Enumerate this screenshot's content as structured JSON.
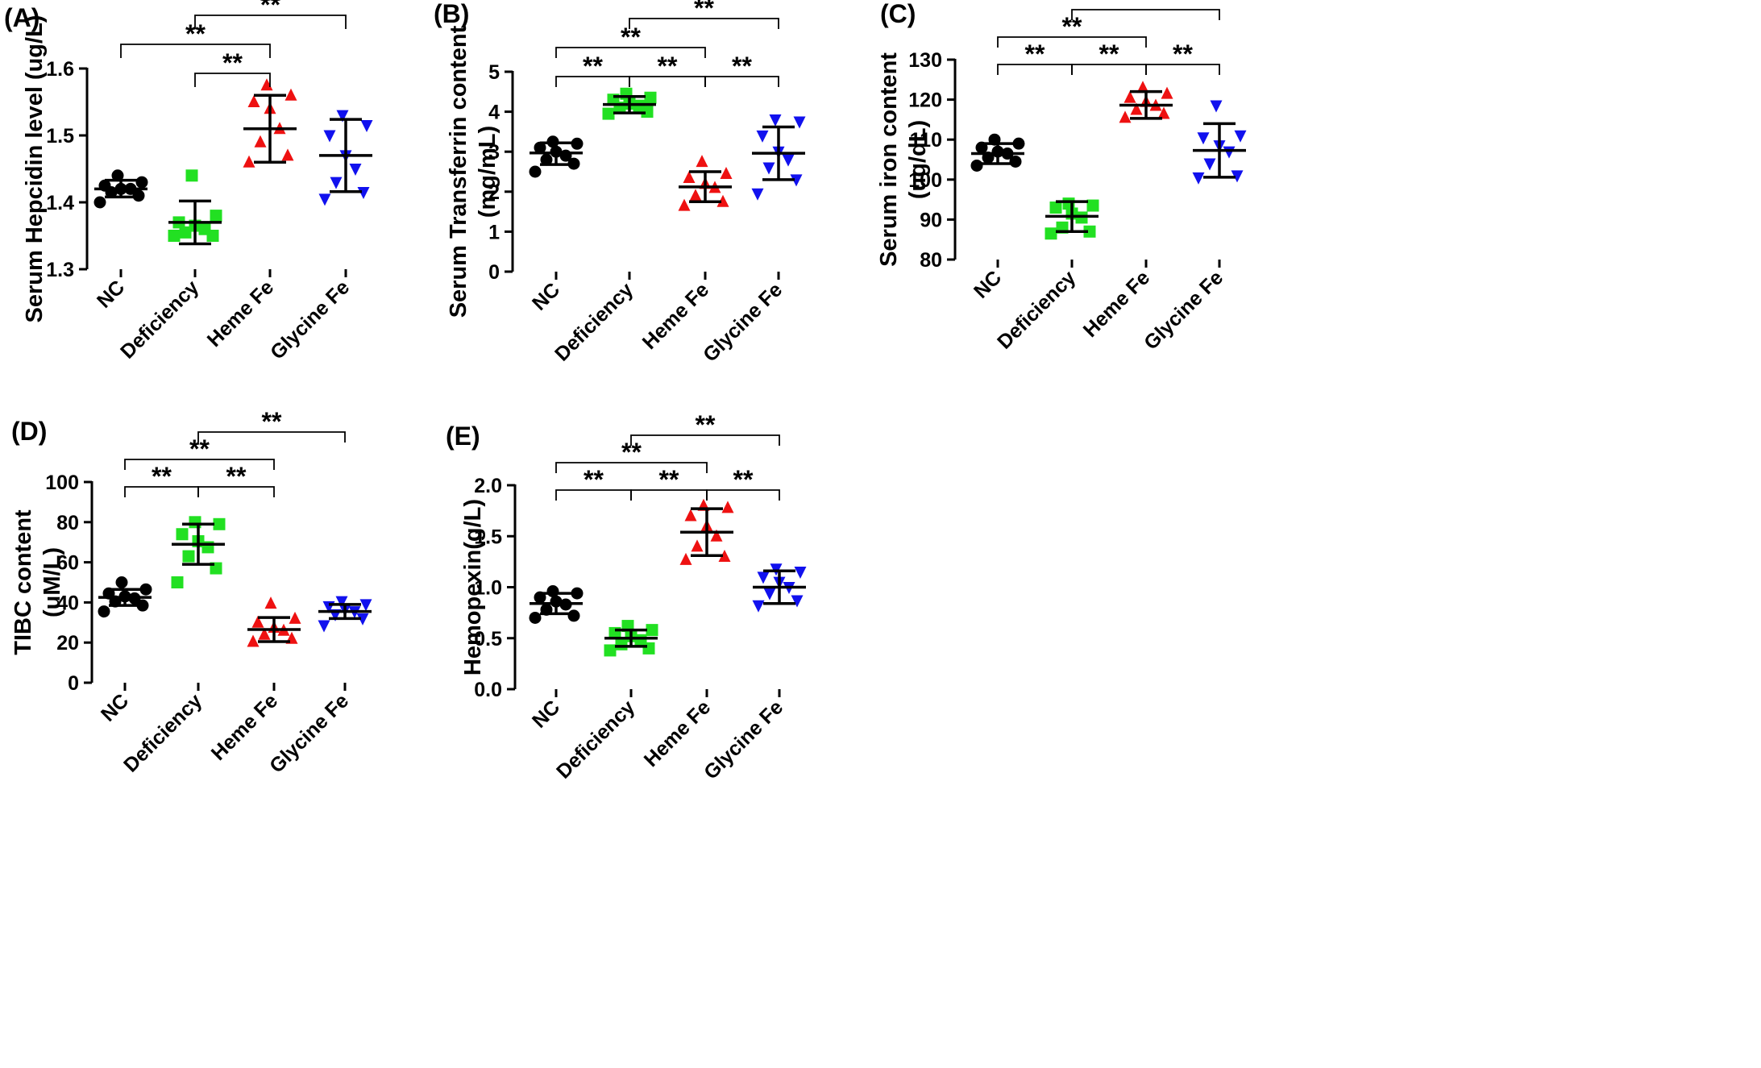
{
  "figure": {
    "colors": {
      "NC": "#000000",
      "Deficiency": "#22e022",
      "Heme Fe": "#ee1111",
      "Glycine Fe": "#1111ee"
    },
    "markers": {
      "NC": "circle",
      "Deficiency": "square",
      "Heme Fe": "triangle-up",
      "Glycine Fe": "triangle-down"
    }
  },
  "chart_data": [
    {
      "panel": "(A)",
      "type": "scatter",
      "ylabel": "Serum Hepcidin level (ug/L)",
      "ylabel_lines": [
        "Serum Hepcidin level (ug/L)"
      ],
      "categories": [
        "NC",
        "Deficiency",
        "Heme Fe",
        "Glycine Fe"
      ],
      "ylim": [
        1.3,
        1.6
      ],
      "yticks": [
        1.3,
        1.4,
        1.5,
        1.6
      ],
      "ytick_labels": [
        "1.3",
        "1.4",
        "1.5",
        "1.6"
      ],
      "series": [
        {
          "name": "NC",
          "mean": 1.42,
          "lower": 1.408,
          "upper": 1.433,
          "points": [
            1.4,
            1.41,
            1.415,
            1.42,
            1.42,
            1.425,
            1.43,
            1.44
          ]
        },
        {
          "name": "Deficiency",
          "mean": 1.37,
          "lower": 1.338,
          "upper": 1.402,
          "points": [
            1.35,
            1.35,
            1.355,
            1.36,
            1.365,
            1.37,
            1.38,
            1.44
          ]
        },
        {
          "name": "Heme Fe",
          "mean": 1.51,
          "lower": 1.46,
          "upper": 1.56,
          "points": [
            1.46,
            1.47,
            1.49,
            1.51,
            1.54,
            1.55,
            1.56,
            1.575
          ]
        },
        {
          "name": "Glycine Fe",
          "mean": 1.47,
          "lower": 1.416,
          "upper": 1.524,
          "points": [
            1.405,
            1.415,
            1.43,
            1.45,
            1.47,
            1.5,
            1.515,
            1.53
          ]
        }
      ],
      "comparisons": [
        {
          "groups": [
            "Deficiency",
            "Heme Fe"
          ],
          "label": "**",
          "level": 1
        },
        {
          "groups": [
            "NC",
            "Heme Fe"
          ],
          "label": "**",
          "level": 2
        },
        {
          "groups": [
            "Deficiency",
            "Glycine Fe"
          ],
          "label": "**",
          "level": 3
        }
      ]
    },
    {
      "panel": "(B)",
      "type": "scatter",
      "ylabel": "Serum Transferrin content (mg/mL)",
      "ylabel_lines": [
        "Serum Transferrin content",
        "(mg/mL)"
      ],
      "categories": [
        "NC",
        "Deficiency",
        "Heme Fe",
        "Glycine Fe"
      ],
      "ylim": [
        0,
        5
      ],
      "yticks": [
        0,
        1,
        2,
        3,
        4,
        5
      ],
      "ytick_labels": [
        "0",
        "1",
        "2",
        "3",
        "4",
        "5"
      ],
      "series": [
        {
          "name": "NC",
          "mean": 2.97,
          "lower": 2.68,
          "upper": 3.22,
          "points": [
            2.5,
            2.7,
            2.8,
            2.9,
            3.0,
            3.1,
            3.2,
            3.25
          ]
        },
        {
          "name": "Deficiency",
          "mean": 4.18,
          "lower": 3.97,
          "upper": 4.38,
          "points": [
            3.95,
            4.0,
            4.1,
            4.15,
            4.2,
            4.3,
            4.35,
            4.45
          ]
        },
        {
          "name": "Heme Fe",
          "mean": 2.12,
          "lower": 1.75,
          "upper": 2.5,
          "points": [
            1.65,
            1.75,
            1.9,
            2.1,
            2.2,
            2.35,
            2.45,
            2.75
          ]
        },
        {
          "name": "Glycine Fe",
          "mean": 2.96,
          "lower": 2.3,
          "upper": 3.62,
          "points": [
            1.95,
            2.3,
            2.6,
            2.8,
            3.0,
            3.4,
            3.75,
            3.8
          ]
        }
      ],
      "comparisons": [
        {
          "groups": [
            "NC",
            "Deficiency"
          ],
          "label": "**",
          "level": 1
        },
        {
          "groups": [
            "Deficiency",
            "Heme Fe"
          ],
          "label": "**",
          "level": 1
        },
        {
          "groups": [
            "Heme Fe",
            "Glycine Fe"
          ],
          "label": "**",
          "level": 1
        },
        {
          "groups": [
            "NC",
            "Heme Fe"
          ],
          "label": "**",
          "level": 2
        },
        {
          "groups": [
            "Deficiency",
            "Glycine Fe"
          ],
          "label": "**",
          "level": 3
        }
      ]
    },
    {
      "panel": "(C)",
      "type": "scatter",
      "ylabel": "Serum iron content (ug/dL)",
      "ylabel_lines": [
        "Serum iron content",
        "(ug/dL)"
      ],
      "categories": [
        "NC",
        "Deficiency",
        "Heme Fe",
        "Glycine Fe"
      ],
      "ylim": [
        80,
        130
      ],
      "yticks": [
        80,
        90,
        100,
        110,
        120,
        130
      ],
      "ytick_labels": [
        "80",
        "90",
        "100",
        "110",
        "120",
        "130"
      ],
      "series": [
        {
          "name": "NC",
          "mean": 106.5,
          "lower": 104.0,
          "upper": 109.0,
          "points": [
            103.5,
            104.5,
            105.5,
            106.5,
            107.0,
            108.0,
            109.0,
            110.0
          ]
        },
        {
          "name": "Deficiency",
          "mean": 90.8,
          "lower": 87.0,
          "upper": 94.5,
          "points": [
            86.5,
            87.0,
            88.0,
            90.5,
            91.5,
            93.0,
            93.5,
            94.0
          ]
        },
        {
          "name": "Heme Fe",
          "mean": 118.6,
          "lower": 115.3,
          "upper": 122.0,
          "points": [
            115.5,
            116.5,
            117.5,
            118.5,
            119.5,
            120.5,
            121.5,
            123.0
          ]
        },
        {
          "name": "Glycine Fe",
          "mean": 107.3,
          "lower": 100.6,
          "upper": 114.0,
          "points": [
            100.5,
            101.0,
            104.0,
            107.0,
            108.5,
            110.5,
            111.0,
            118.5
          ]
        }
      ],
      "comparisons": [
        {
          "groups": [
            "NC",
            "Deficiency"
          ],
          "label": "**",
          "level": 1
        },
        {
          "groups": [
            "Deficiency",
            "Heme Fe"
          ],
          "label": "**",
          "level": 1
        },
        {
          "groups": [
            "Heme Fe",
            "Glycine Fe"
          ],
          "label": "**",
          "level": 1
        },
        {
          "groups": [
            "NC",
            "Heme Fe"
          ],
          "label": "**",
          "level": 2
        },
        {
          "groups": [
            "Deficiency",
            "Glycine Fe"
          ],
          "label": "**",
          "level": 3
        }
      ]
    },
    {
      "panel": "(D)",
      "type": "scatter",
      "ylabel": "TIBC content (uM/L)",
      "ylabel_lines": [
        "TIBC content",
        "(uM/L)"
      ],
      "categories": [
        "NC",
        "Deficiency",
        "Heme Fe",
        "Glycine Fe"
      ],
      "ylim": [
        0,
        100
      ],
      "yticks": [
        0,
        20,
        40,
        60,
        80,
        100
      ],
      "ytick_labels": [
        "0",
        "20",
        "40",
        "60",
        "80",
        "100"
      ],
      "series": [
        {
          "name": "NC",
          "mean": 42.5,
          "lower": 38.5,
          "upper": 46.5,
          "points": [
            35.5,
            38.5,
            40.5,
            42.0,
            43.0,
            44.5,
            46.5,
            50.0
          ]
        },
        {
          "name": "Deficiency",
          "mean": 69.0,
          "lower": 59.0,
          "upper": 79.0,
          "points": [
            50.0,
            57.0,
            63.0,
            67.5,
            70.5,
            74.0,
            79.0,
            80.0
          ]
        },
        {
          "name": "Heme Fe",
          "mean": 26.5,
          "lower": 20.5,
          "upper": 32.5,
          "points": [
            20.5,
            22.0,
            24.0,
            26.0,
            27.5,
            30.0,
            32.0,
            39.5
          ]
        },
        {
          "name": "Glycine Fe",
          "mean": 35.5,
          "lower": 32.0,
          "upper": 39.0,
          "points": [
            28.5,
            32.0,
            34.0,
            35.5,
            36.5,
            38.0,
            39.0,
            40.5
          ]
        }
      ],
      "comparisons": [
        {
          "groups": [
            "NC",
            "Deficiency"
          ],
          "label": "**",
          "level": 1
        },
        {
          "groups": [
            "Deficiency",
            "Heme Fe"
          ],
          "label": "**",
          "level": 1
        },
        {
          "groups": [
            "NC",
            "Heme Fe"
          ],
          "label": "**",
          "level": 2
        },
        {
          "groups": [
            "Deficiency",
            "Glycine Fe"
          ],
          "label": "**",
          "level": 3
        }
      ]
    },
    {
      "panel": "(E)",
      "type": "scatter",
      "ylabel": "Hemopexin(g/L)",
      "ylabel_lines": [
        "Hemopexin(g/L)"
      ],
      "categories": [
        "NC",
        "Deficiency",
        "Heme Fe",
        "Glycine Fe"
      ],
      "ylim": [
        0.0,
        2.0
      ],
      "yticks": [
        0.0,
        0.5,
        1.0,
        1.5,
        2.0
      ],
      "ytick_labels": [
        "0.0",
        "0.5",
        "1.0",
        "1.5",
        "2.0"
      ],
      "series": [
        {
          "name": "NC",
          "mean": 0.84,
          "lower": 0.74,
          "upper": 0.94,
          "points": [
            0.7,
            0.72,
            0.78,
            0.83,
            0.86,
            0.9,
            0.94,
            0.96
          ]
        },
        {
          "name": "Deficiency",
          "mean": 0.5,
          "lower": 0.42,
          "upper": 0.58,
          "points": [
            0.38,
            0.4,
            0.44,
            0.48,
            0.52,
            0.55,
            0.58,
            0.62
          ]
        },
        {
          "name": "Heme Fe",
          "mean": 1.54,
          "lower": 1.31,
          "upper": 1.77,
          "points": [
            1.27,
            1.3,
            1.4,
            1.5,
            1.6,
            1.7,
            1.78,
            1.8
          ]
        },
        {
          "name": "Glycine Fe",
          "mean": 1.0,
          "lower": 0.84,
          "upper": 1.16,
          "points": [
            0.82,
            0.87,
            0.94,
            1.0,
            1.05,
            1.1,
            1.15,
            1.18
          ]
        }
      ],
      "comparisons": [
        {
          "groups": [
            "NC",
            "Deficiency"
          ],
          "label": "**",
          "level": 1
        },
        {
          "groups": [
            "Deficiency",
            "Heme Fe"
          ],
          "label": "**",
          "level": 1
        },
        {
          "groups": [
            "Heme Fe",
            "Glycine Fe"
          ],
          "label": "**",
          "level": 1
        },
        {
          "groups": [
            "NC",
            "Heme Fe"
          ],
          "label": "**",
          "level": 2
        },
        {
          "groups": [
            "Deficiency",
            "Glycine Fe"
          ],
          "label": "**",
          "level": 3
        }
      ]
    }
  ]
}
